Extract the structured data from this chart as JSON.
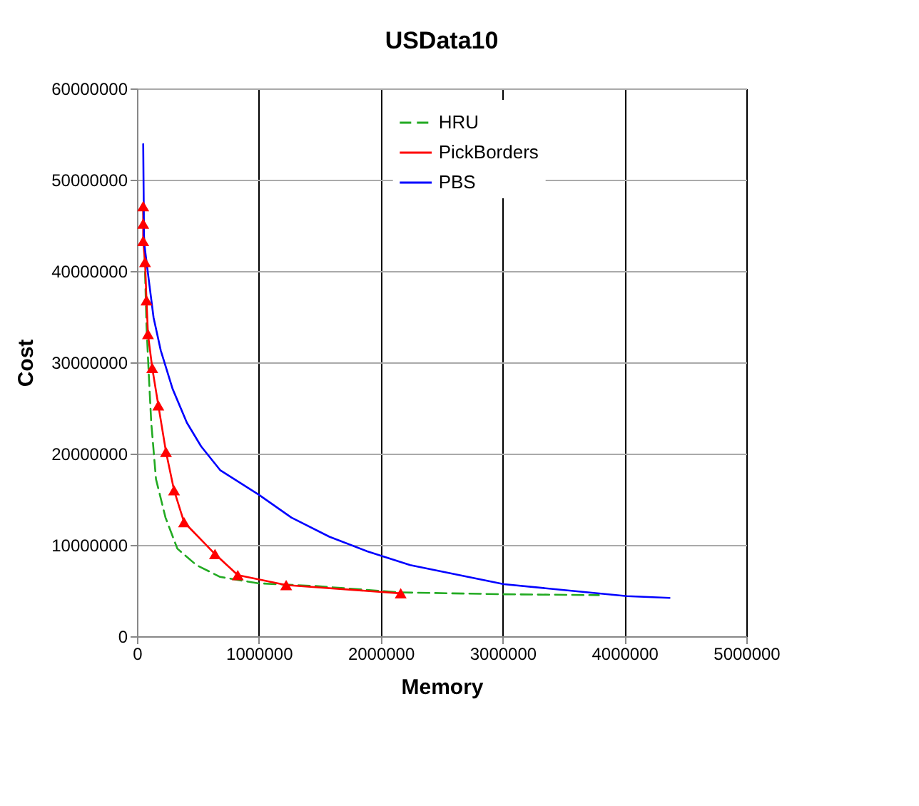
{
  "chart_data": {
    "type": "line",
    "title": "USData10",
    "xlabel": "Memory",
    "ylabel": "Cost",
    "xlim": [
      0,
      5000000
    ],
    "xticks": [
      0,
      1000000,
      2000000,
      3000000,
      4000000,
      5000000
    ],
    "ylim": [
      0,
      60000000
    ],
    "yticks": [
      0,
      10000000,
      20000000,
      30000000,
      40000000,
      50000000,
      60000000
    ],
    "grid": true,
    "legend": "top",
    "series": [
      {
        "name": "HRU",
        "color": "#22aa22",
        "line_style": "dashed",
        "marker": "none",
        "x": [
          51000,
          66000,
          78000,
          97000,
          117000,
          156000,
          234000,
          331000,
          487000,
          682000,
          994000,
          1462000,
          2164000,
          3000000,
          3790000
        ],
        "values": [
          47400000,
          40000000,
          34000000,
          28600000,
          23400000,
          17200000,
          13000000,
          9600000,
          7800000,
          6500000,
          5800000,
          5500000,
          4800000,
          4600000,
          4500000
        ]
      },
      {
        "name": "PickBorders",
        "color": "#ff0000",
        "line_style": "solid",
        "marker": "triangle",
        "x": [
          51000,
          51000,
          51000,
          66000,
          78000,
          90000,
          125000,
          175000,
          238000,
          304000,
          386000,
          640000,
          827000,
          1224000,
          2164000
        ],
        "values": [
          47100000,
          45200000,
          43300000,
          41000000,
          36800000,
          33100000,
          29400000,
          25300000,
          20200000,
          16000000,
          12500000,
          9000000,
          6700000,
          5600000,
          4700000
        ]
      },
      {
        "name": "PBS",
        "color": "#0000ff",
        "line_style": "solid",
        "marker": "none",
        "x": [
          51000,
          58000,
          97000,
          136000,
          195000,
          292000,
          409000,
          526000,
          682000,
          1000000,
          1267000,
          1579000,
          1890000,
          2242000,
          3010000,
          4020000,
          4370000
        ],
        "values": [
          53900000,
          43200000,
          39000000,
          34900000,
          31300000,
          27100000,
          23400000,
          20800000,
          18200000,
          15500000,
          13000000,
          10900000,
          9300000,
          7800000,
          5700000,
          4400000,
          4200000
        ]
      }
    ]
  }
}
